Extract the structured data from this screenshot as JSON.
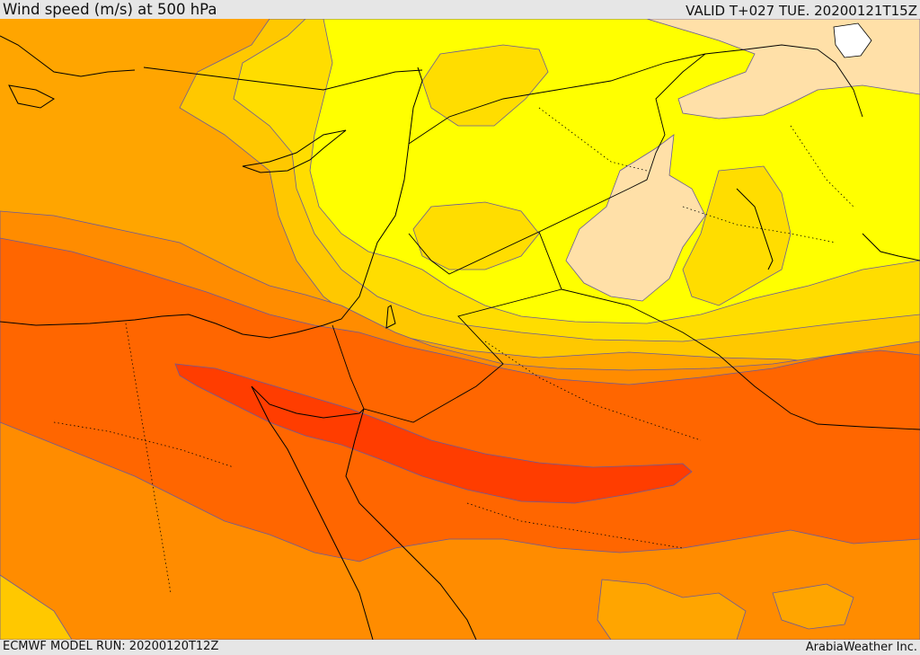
{
  "header": {
    "title": "Wind speed (m/s) at 500 hPa",
    "valid_time": "VALID T+027 TUE. 20200121T15Z"
  },
  "footer": {
    "model_run": "ECMWF MODEL RUN: 20200120T12Z",
    "credit": "ArabiaWeather Inc."
  },
  "map": {
    "field": "wind-speed-500hpa",
    "colors": {
      "peach": "#ffe0a8",
      "yellow": "#ffff00",
      "gold": "#ffdd00",
      "light_orange": "#ffc800",
      "orange": "#ffa500",
      "dark_orange": "#ff8c00",
      "red_orange": "#ff6600",
      "red": "#ff3d00",
      "lake_white": "#ffffff",
      "coastline": "#000000",
      "contour": "#6a5a9a"
    }
  }
}
